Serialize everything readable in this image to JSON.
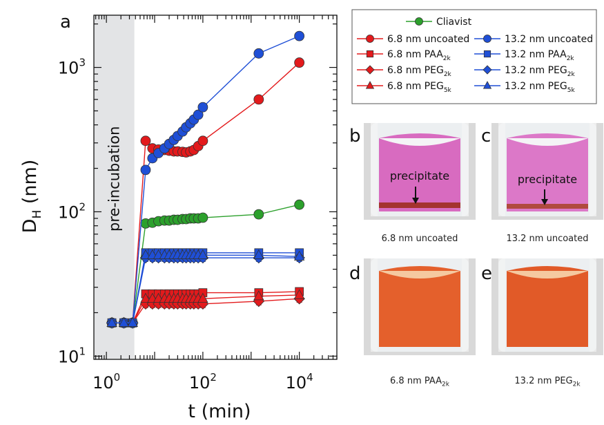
{
  "figure": {
    "panel_a_letter": "a",
    "panel_b_letter": "b",
    "panel_c_letter": "c",
    "panel_d_letter": "d",
    "panel_e_letter": "e",
    "shaded_label": "pre-incubation",
    "photos": [
      {
        "id": "b",
        "caption": "6.8 nm uncoated",
        "annotation": "precipitate",
        "liquid": "magenta"
      },
      {
        "id": "c",
        "caption": "13.2 nm uncoated",
        "annotation": "precipitate",
        "liquid": "magenta"
      },
      {
        "id": "d",
        "caption_main": "6.8 nm PAA",
        "caption_sub": "2k",
        "liquid": "orange"
      },
      {
        "id": "e",
        "caption_main": "13.2 nm PEG",
        "caption_sub": "2k",
        "liquid": "orange"
      }
    ]
  },
  "chart_data": {
    "type": "scatter",
    "xlabel": "t (min)",
    "ylabel_main": "D",
    "ylabel_sub": "H",
    "ylabel_unit": " (nm)",
    "xscale": "log",
    "yscale": "log",
    "xlim": [
      0.55,
      60000
    ],
    "ylim": [
      9.5,
      2300
    ],
    "xticks": [
      {
        "value": 1,
        "base": "10",
        "exp": "0"
      },
      {
        "value": 100,
        "base": "10",
        "exp": "2"
      },
      {
        "value": 10000,
        "base": "10",
        "exp": "4"
      }
    ],
    "yticks": [
      {
        "value": 10,
        "base": "10",
        "exp": "1"
      },
      {
        "value": 100,
        "base": "10",
        "exp": "2"
      },
      {
        "value": 1000,
        "base": "10",
        "exp": "3"
      }
    ],
    "shaded_region": [
      0.55,
      3.8
    ],
    "legend": {
      "placement": "top-right",
      "entries": [
        {
          "main": "Cliavist",
          "sub": "",
          "color": "#2ca02c",
          "marker": "circle"
        },
        {
          "main": "6.8 nm uncoated",
          "sub": "",
          "color": "#e31a1c",
          "marker": "circle"
        },
        {
          "main": "13.2 nm uncoated",
          "sub": "",
          "color": "#1f4fd6",
          "marker": "circle"
        },
        {
          "main": "6.8 nm PAA",
          "sub": "2k",
          "color": "#e31a1c",
          "marker": "square"
        },
        {
          "main": "13.2 nm PAA",
          "sub": "2k",
          "color": "#1f4fd6",
          "marker": "square"
        },
        {
          "main": "6.8 nm PEG",
          "sub": "2k",
          "color": "#e31a1c",
          "marker": "diamond"
        },
        {
          "main": "13.2 nm PEG",
          "sub": "2k",
          "color": "#1f4fd6",
          "marker": "diamond"
        },
        {
          "main": "6.8 nm PEG",
          "sub": "5k",
          "color": "#e31a1c",
          "marker": "triangle"
        },
        {
          "main": "13.2 nm PEG",
          "sub": "5k",
          "color": "#1f4fd6",
          "marker": "triangle"
        }
      ]
    },
    "series": [
      {
        "legend_index": 0,
        "color": "#2ca02c",
        "marker": "circle",
        "x": [
          1.3,
          2.3,
          3.5,
          6.5,
          9,
          12,
          16,
          20,
          25,
          30,
          38,
          45,
          55,
          65,
          80,
          100,
          1440,
          10000
        ],
        "y": [
          17,
          17,
          17,
          83,
          84,
          86,
          87,
          87,
          88,
          88,
          89,
          89,
          90,
          90,
          90,
          91,
          96,
          112
        ]
      },
      {
        "legend_index": 1,
        "color": "#e31a1c",
        "marker": "circle",
        "x": [
          1.3,
          2.3,
          3.5,
          6.5,
          9,
          12,
          16,
          20,
          25,
          30,
          38,
          45,
          55,
          65,
          80,
          100,
          1440,
          10000
        ],
        "y": [
          17,
          17,
          17,
          310,
          275,
          270,
          268,
          265,
          262,
          262,
          260,
          258,
          262,
          268,
          285,
          310,
          600,
          1080
        ]
      },
      {
        "legend_index": 2,
        "color": "#1f4fd6",
        "marker": "circle",
        "x": [
          1.3,
          2.3,
          3.5,
          6.5,
          9,
          12,
          16,
          20,
          25,
          30,
          38,
          45,
          55,
          65,
          80,
          100,
          1440,
          10000
        ],
        "y": [
          17,
          17,
          17,
          195,
          235,
          255,
          275,
          295,
          315,
          335,
          360,
          385,
          410,
          435,
          470,
          530,
          1250,
          1650
        ]
      },
      {
        "legend_index": 3,
        "color": "#e31a1c",
        "marker": "square",
        "x": [
          1.3,
          2.3,
          3.5,
          6.5,
          9,
          12,
          16,
          20,
          25,
          30,
          38,
          45,
          55,
          65,
          80,
          100,
          1440,
          10000
        ],
        "y": [
          17,
          17,
          17,
          27,
          27,
          27,
          27,
          27,
          27,
          27,
          27,
          27,
          27,
          27,
          27,
          27.5,
          27.5,
          28
        ]
      },
      {
        "legend_index": 5,
        "color": "#e31a1c",
        "marker": "diamond",
        "x": [
          1.3,
          2.3,
          3.5,
          6.5,
          9,
          12,
          16,
          20,
          25,
          30,
          38,
          45,
          55,
          65,
          80,
          100,
          1440,
          10000
        ],
        "y": [
          17,
          17,
          17,
          23,
          23,
          23,
          23,
          23,
          23,
          23,
          23,
          23,
          23,
          23,
          23,
          23,
          24,
          25
        ]
      },
      {
        "legend_index": 7,
        "color": "#e31a1c",
        "marker": "triangle",
        "x": [
          1.3,
          2.3,
          3.5,
          6.5,
          9,
          12,
          16,
          20,
          25,
          30,
          38,
          45,
          55,
          65,
          80,
          100,
          1440,
          10000
        ],
        "y": [
          17,
          17,
          17,
          25,
          25,
          25,
          25,
          25,
          25,
          25,
          25,
          25,
          25,
          25,
          25,
          25,
          26,
          26.5
        ]
      },
      {
        "legend_index": 4,
        "color": "#1f4fd6",
        "marker": "square",
        "x": [
          1.3,
          2.3,
          3.5,
          6.5,
          9,
          12,
          16,
          20,
          25,
          30,
          38,
          45,
          55,
          65,
          80,
          100,
          1440,
          10000
        ],
        "y": [
          17,
          17,
          17,
          52,
          52,
          52,
          52,
          52,
          52,
          52,
          52,
          52,
          52,
          52,
          52,
          52,
          52,
          52
        ]
      },
      {
        "legend_index": 6,
        "color": "#1f4fd6",
        "marker": "diamond",
        "x": [
          1.3,
          2.3,
          3.5,
          6.5,
          9,
          12,
          16,
          20,
          25,
          30,
          38,
          45,
          55,
          65,
          80,
          100,
          1440,
          10000
        ],
        "y": [
          17,
          17,
          17,
          48,
          48,
          48,
          48,
          48,
          48,
          48,
          48,
          48,
          48,
          48,
          48,
          48,
          48,
          48
        ]
      },
      {
        "legend_index": 8,
        "color": "#1f4fd6",
        "marker": "triangle",
        "x": [
          1.3,
          2.3,
          3.5,
          6.5,
          9,
          12,
          16,
          20,
          25,
          30,
          38,
          45,
          55,
          65,
          80,
          100,
          1440,
          10000
        ],
        "y": [
          17,
          17,
          17,
          50,
          50,
          50,
          50,
          50,
          50,
          50,
          50,
          50,
          50,
          50,
          50,
          50,
          50,
          49
        ]
      }
    ]
  }
}
